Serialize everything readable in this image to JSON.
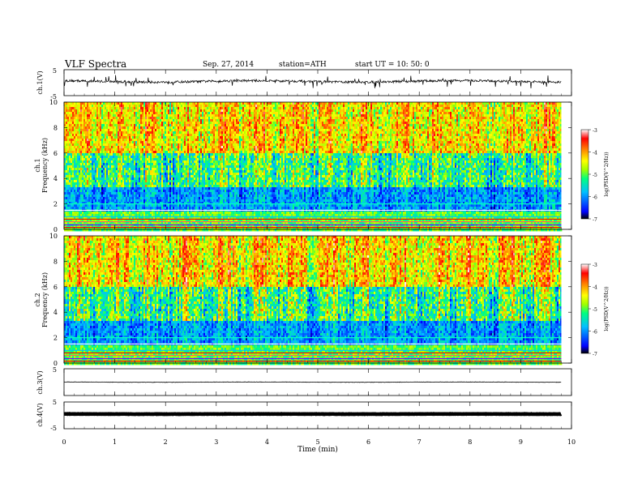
{
  "header": {
    "title": "VLF  Spectra",
    "date": "Sep. 27, 2014",
    "station": "station=ATH",
    "start": "start  UT  =    10: 50: 0"
  },
  "chart_data": [
    {
      "type": "line",
      "panel": "ch1-waveform",
      "ylabel": "ch.1(V)",
      "ylim": [
        -5,
        5
      ],
      "yticks": [
        "5",
        "-5"
      ],
      "description_values": {
        "baseline_V": 0.5,
        "spike_amplitude_V": 2.5
      }
    },
    {
      "type": "heatmap",
      "panel": "ch1-spectrogram",
      "ylabel_top": "ch.1",
      "ylabel": "Frequency  (kHz)",
      "ylim": [
        0,
        10
      ],
      "yticks": [
        "0",
        "2",
        "4",
        "6",
        "8",
        "10"
      ],
      "colorbar": {
        "label": "log(PSD(V^2/Hz))",
        "range": [
          -7,
          -3
        ],
        "ticks": [
          "-3",
          "-4",
          "-5",
          "-6",
          "-7"
        ],
        "colors": [
          "#000000",
          "#0000ff",
          "#00c0ff",
          "#00ff80",
          "#a0ff00",
          "#ffff00",
          "#ff8000",
          "#ff0000",
          "#ffffff"
        ]
      }
    },
    {
      "type": "heatmap",
      "panel": "ch2-spectrogram",
      "ylabel_top": "ch.2",
      "ylabel": "Frequency  (kHz)",
      "ylim": [
        0,
        10
      ],
      "yticks": [
        "0",
        "2",
        "4",
        "6",
        "8",
        "10"
      ],
      "colorbar": {
        "label": "log(PSD(V^2/Hz))",
        "range": [
          -7,
          -3
        ],
        "ticks": [
          "-3",
          "-4",
          "-5",
          "-6",
          "-7"
        ]
      }
    },
    {
      "type": "line",
      "panel": "ch3-waveform",
      "ylabel": "ch.3(V)",
      "ylim": [
        -5,
        5
      ],
      "yticks": [
        "5"
      ],
      "description_values": {
        "baseline_V": 0.0
      }
    },
    {
      "type": "line",
      "panel": "ch4-waveform",
      "ylabel": "ch.4(V)",
      "ylim": [
        -5,
        5
      ],
      "yticks": [
        "5",
        "-5"
      ],
      "description_values": {
        "baseline_V": 0.5
      }
    }
  ],
  "xaxis": {
    "label": "Time  (min)",
    "range": [
      0,
      10
    ],
    "data_end": 9.8,
    "ticks": [
      "0",
      "1",
      "2",
      "3",
      "4",
      "5",
      "6",
      "7",
      "8",
      "9",
      "10"
    ]
  }
}
